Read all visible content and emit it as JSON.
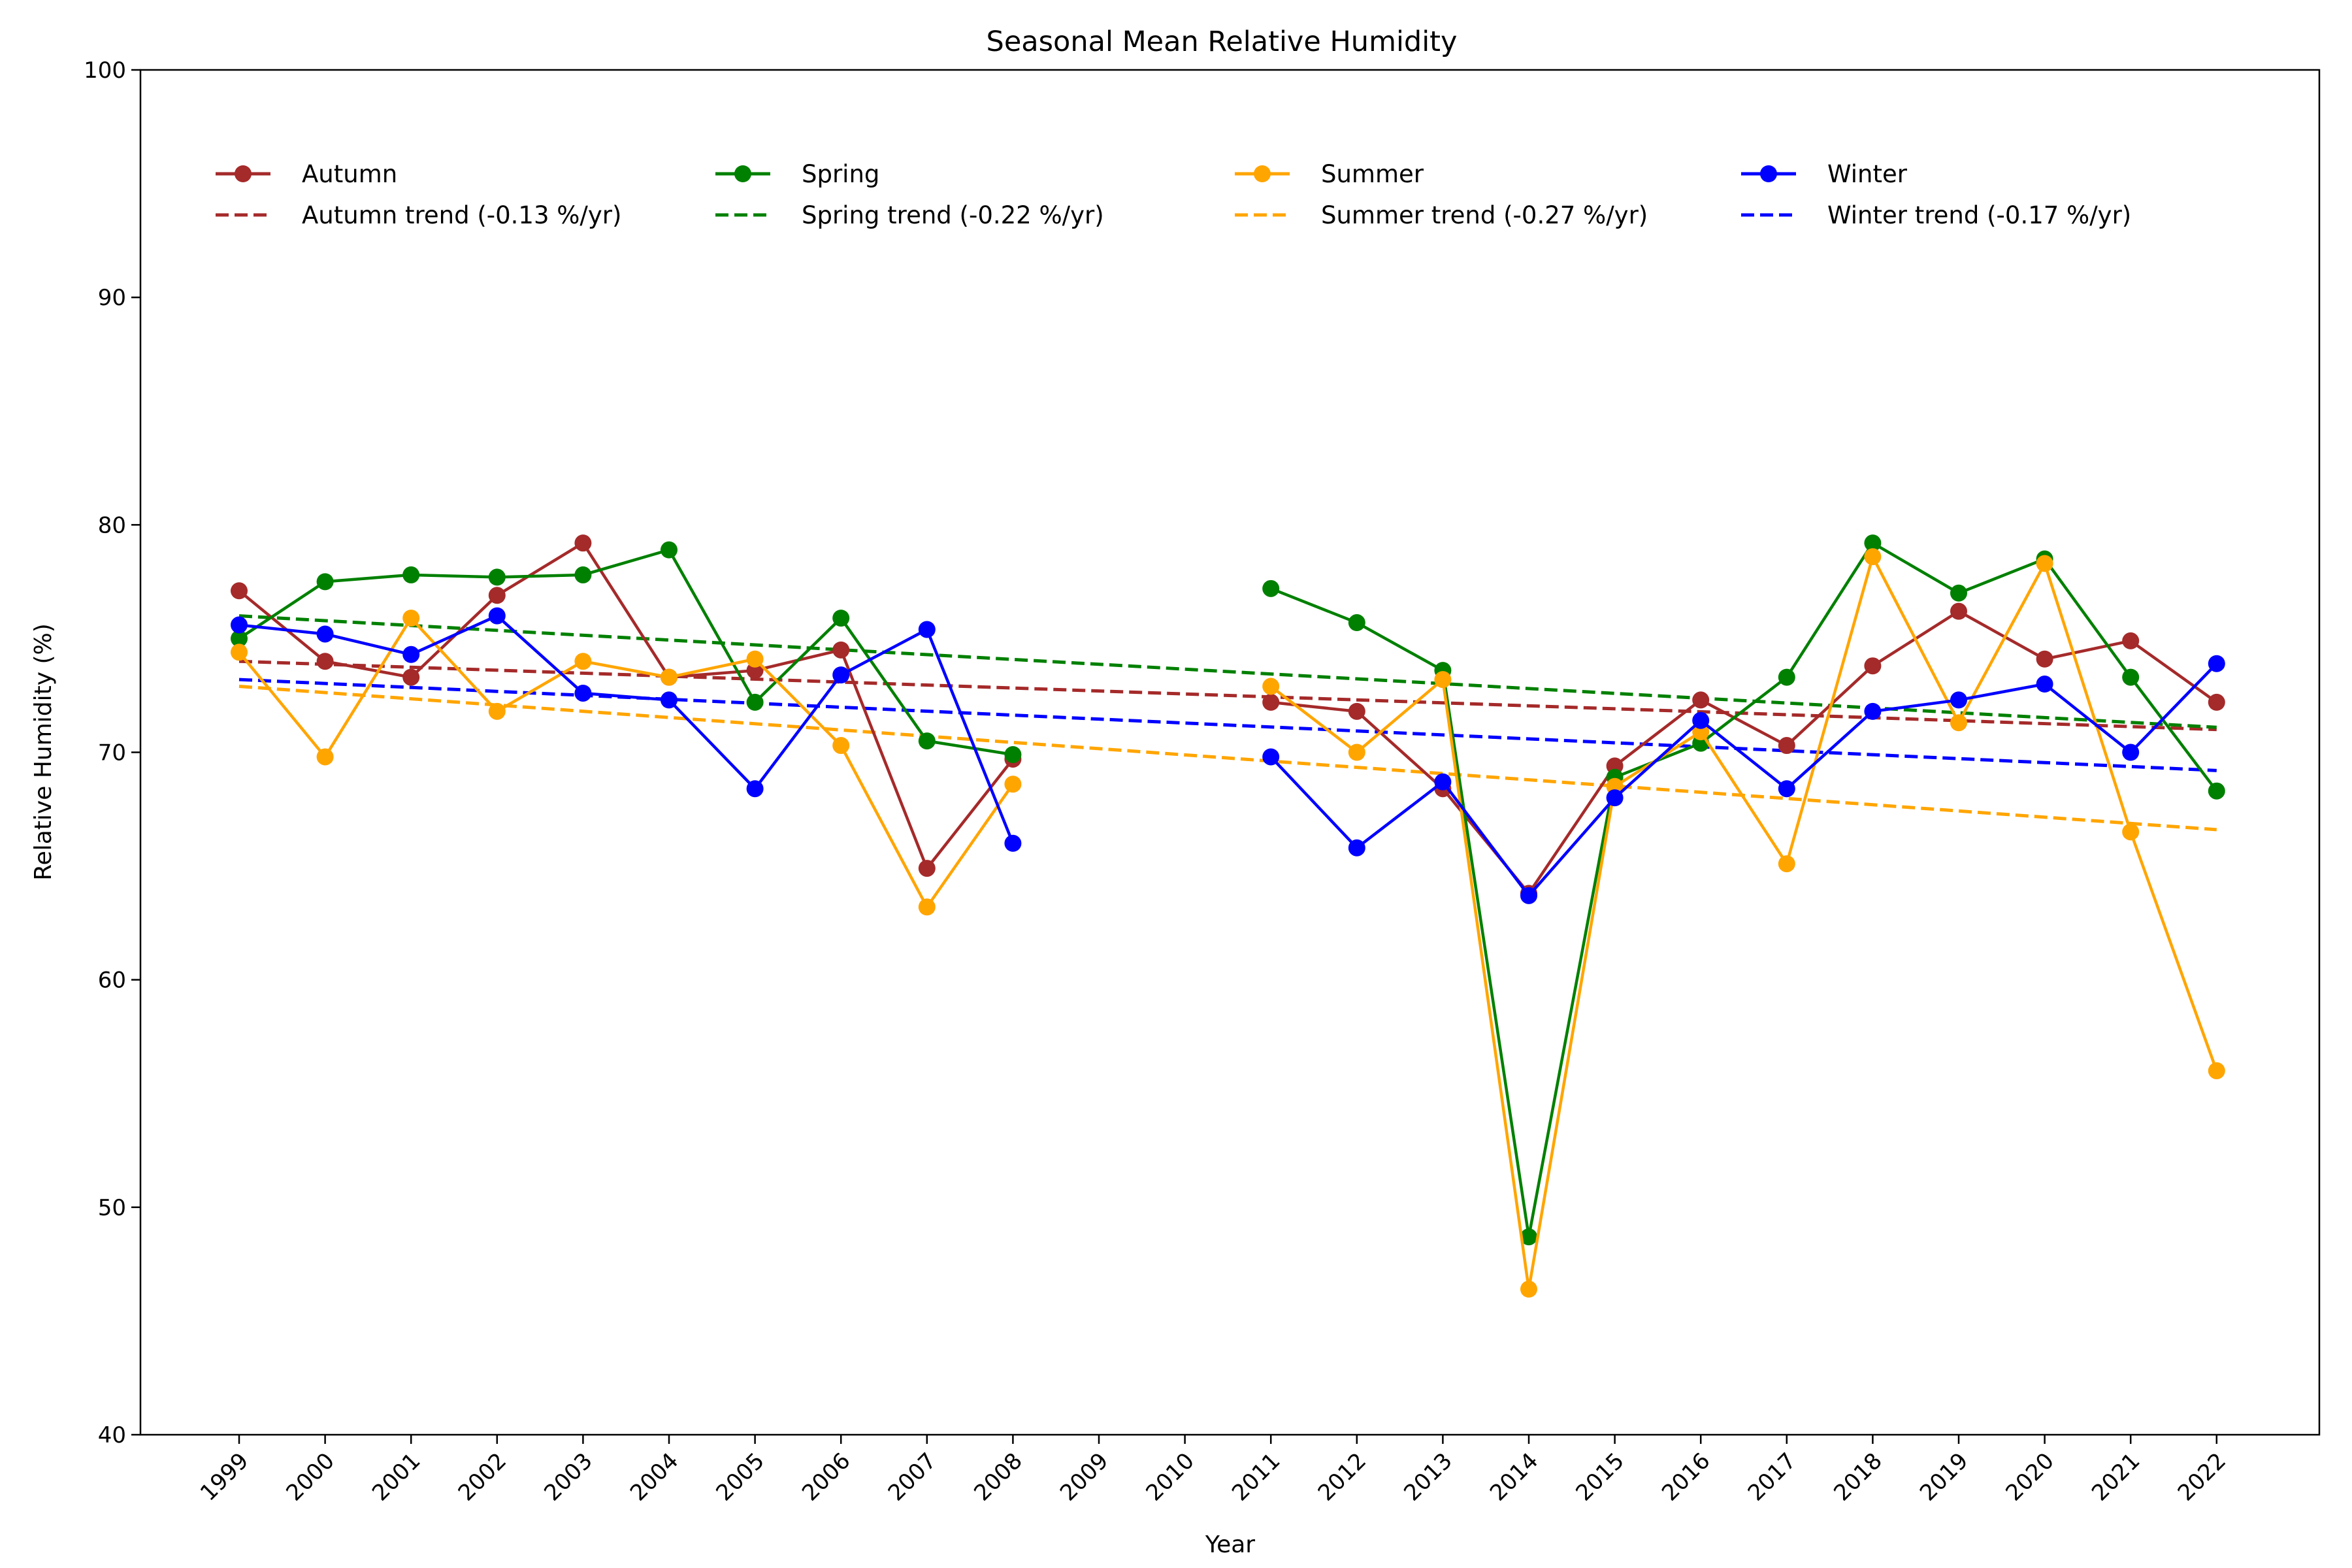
{
  "chart_data": {
    "type": "line",
    "title": "Seasonal Mean Relative Humidity",
    "xlabel": "Year",
    "ylabel": "Relative Humidity (%)",
    "ylim": [
      40,
      100
    ],
    "yticks": [
      40,
      50,
      60,
      70,
      80,
      90,
      100
    ],
    "grid": false,
    "legend_position": "top",
    "categories": [
      "1999",
      "2000",
      "2001",
      "2002",
      "2003",
      "2004",
      "2005",
      "2006",
      "2007",
      "2008",
      "2009",
      "2010",
      "2011",
      "2012",
      "2013",
      "2014",
      "2015",
      "2016",
      "2017",
      "2018",
      "2019",
      "2020",
      "2021",
      "2022"
    ],
    "series": [
      {
        "name": "Autumn",
        "color": "#a52a2a",
        "values": [
          77.1,
          74.0,
          73.3,
          76.9,
          79.2,
          73.3,
          73.6,
          74.5,
          64.9,
          69.7,
          null,
          null,
          72.2,
          71.8,
          68.4,
          63.8,
          69.4,
          72.3,
          70.3,
          73.8,
          76.2,
          74.1,
          74.9,
          72.2
        ]
      },
      {
        "name": "Spring",
        "color": "#008000",
        "values": [
          75.0,
          77.5,
          77.8,
          77.7,
          77.8,
          78.9,
          72.2,
          75.9,
          70.5,
          69.9,
          null,
          null,
          77.2,
          75.7,
          73.6,
          48.7,
          68.9,
          70.4,
          73.3,
          79.2,
          77.0,
          78.5,
          73.3,
          68.3
        ]
      },
      {
        "name": "Summer",
        "color": "#ffa500",
        "values": [
          74.4,
          69.8,
          75.9,
          71.8,
          74.0,
          73.3,
          74.1,
          70.3,
          63.2,
          68.6,
          null,
          null,
          72.9,
          70.0,
          73.2,
          46.4,
          68.5,
          70.9,
          65.1,
          78.6,
          71.3,
          78.3,
          66.5,
          56.0
        ]
      },
      {
        "name": "Winter",
        "color": "#0000ff",
        "values": [
          75.6,
          75.2,
          74.3,
          76.0,
          72.6,
          72.3,
          68.4,
          73.4,
          75.4,
          66.0,
          null,
          null,
          69.8,
          65.8,
          68.7,
          63.7,
          68.0,
          71.4,
          68.4,
          71.8,
          72.3,
          73.0,
          70.0,
          73.9
        ]
      }
    ],
    "trends": [
      {
        "name": "Autumn trend (-0.13 %/yr)",
        "color": "#a52a2a",
        "start": 74.0,
        "end": 71.0
      },
      {
        "name": "Spring trend (-0.22 %/yr)",
        "color": "#008000",
        "start": 76.0,
        "end": 71.1
      },
      {
        "name": "Summer trend (-0.27 %/yr)",
        "color": "#ffa500",
        "start": 72.9,
        "end": 66.6
      },
      {
        "name": "Winter trend (-0.17 %/yr)",
        "color": "#0000ff",
        "start": 73.2,
        "end": 69.2
      }
    ]
  }
}
